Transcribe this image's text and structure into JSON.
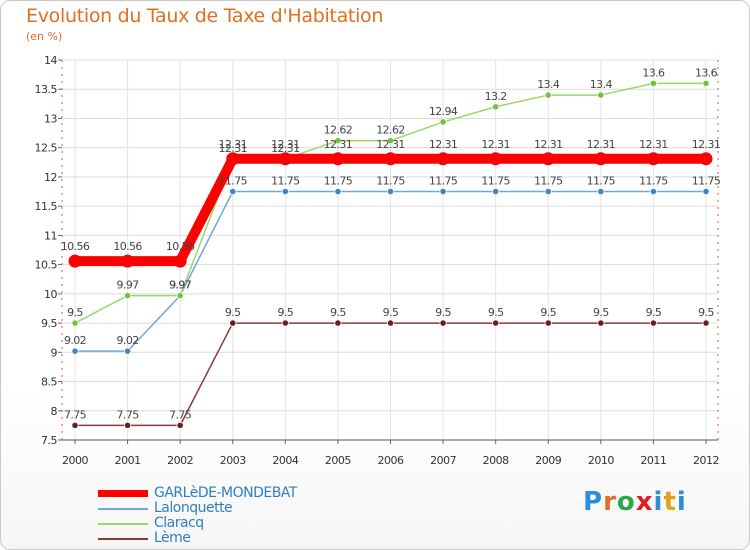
{
  "title": "Evolution du Taux de Taxe d'Habitation",
  "subtitle": "(en %)",
  "logo": {
    "text": "Proxiti",
    "letters": [
      "P",
      "r",
      "o",
      "x",
      "i",
      "t",
      "i"
    ],
    "colors": [
      "#2a8fd8",
      "#e07020",
      "#2aa84a",
      "#e02020",
      "#2a8fd8",
      "#e0a020",
      "#2a8fd8"
    ]
  },
  "chart_data": {
    "type": "line",
    "title": "Evolution du Taux de Taxe d'Habitation",
    "ylabel": "(en %)",
    "xlabel": "",
    "x": [
      "2000",
      "2001",
      "2002",
      "2003",
      "2004",
      "2005",
      "2006",
      "2007",
      "2008",
      "2009",
      "2010",
      "2011",
      "2012"
    ],
    "ylim": [
      7.5,
      14
    ],
    "yticks": [
      "7.5",
      "8",
      "8.5",
      "9",
      "9.5",
      "10",
      "10.5",
      "11",
      "11.5",
      "12",
      "12.5",
      "13",
      "13.5",
      "14"
    ],
    "grid": true,
    "legend_position": "bottom-left",
    "series": [
      {
        "name": "GARLèDE-MONDEBAT",
        "color": "#ff0000",
        "marker": "#ff0000",
        "thick": true,
        "values": [
          10.56,
          10.56,
          10.56,
          12.31,
          12.31,
          12.31,
          12.31,
          12.31,
          12.31,
          12.31,
          12.31,
          12.31,
          12.31
        ],
        "labels": [
          "10.56",
          "10.56",
          "10.56",
          "12.31",
          "12.31",
          "12.31",
          "12.31",
          "12.31",
          "12.31",
          "12.31",
          "12.31",
          "12.31",
          "12.31"
        ]
      },
      {
        "name": "Lalonquette",
        "color": "#6fa7d6",
        "marker": "#3a87c8",
        "thick": false,
        "values": [
          9.02,
          9.02,
          9.97,
          11.75,
          11.75,
          11.75,
          11.75,
          11.75,
          11.75,
          11.75,
          11.75,
          11.75,
          11.75
        ],
        "labels": [
          "9.02",
          "9.02",
          "9.97",
          "11.75",
          "11.75",
          "11.75",
          "11.75",
          "11.75",
          "11.75",
          "11.75",
          "11.75",
          "11.75",
          "11.75"
        ]
      },
      {
        "name": "Claracq",
        "color": "#9ad86a",
        "marker": "#6cc63a",
        "thick": false,
        "values": [
          9.5,
          9.97,
          9.97,
          12.31,
          12.31,
          12.62,
          12.62,
          12.94,
          13.2,
          13.4,
          13.4,
          13.6,
          13.6
        ],
        "labels": [
          "9.5",
          "9.97",
          "9.97",
          "12.31",
          "12.31",
          "12.62",
          "12.62",
          "12.94",
          "13.2",
          "13.4",
          "13.4",
          "13.6",
          "13.6"
        ]
      },
      {
        "name": "Lème",
        "color": "#8a3a3a",
        "marker": "#6a1e1e",
        "thick": false,
        "values": [
          7.75,
          7.75,
          7.75,
          9.5,
          9.5,
          9.5,
          9.5,
          9.5,
          9.5,
          9.5,
          9.5,
          9.5,
          9.5
        ],
        "labels": [
          "7.75",
          "7.75",
          "7.75",
          "9.5",
          "9.5",
          "9.5",
          "9.5",
          "9.5",
          "9.5",
          "9.5",
          "9.5",
          "9.5",
          "9.5"
        ]
      }
    ]
  }
}
